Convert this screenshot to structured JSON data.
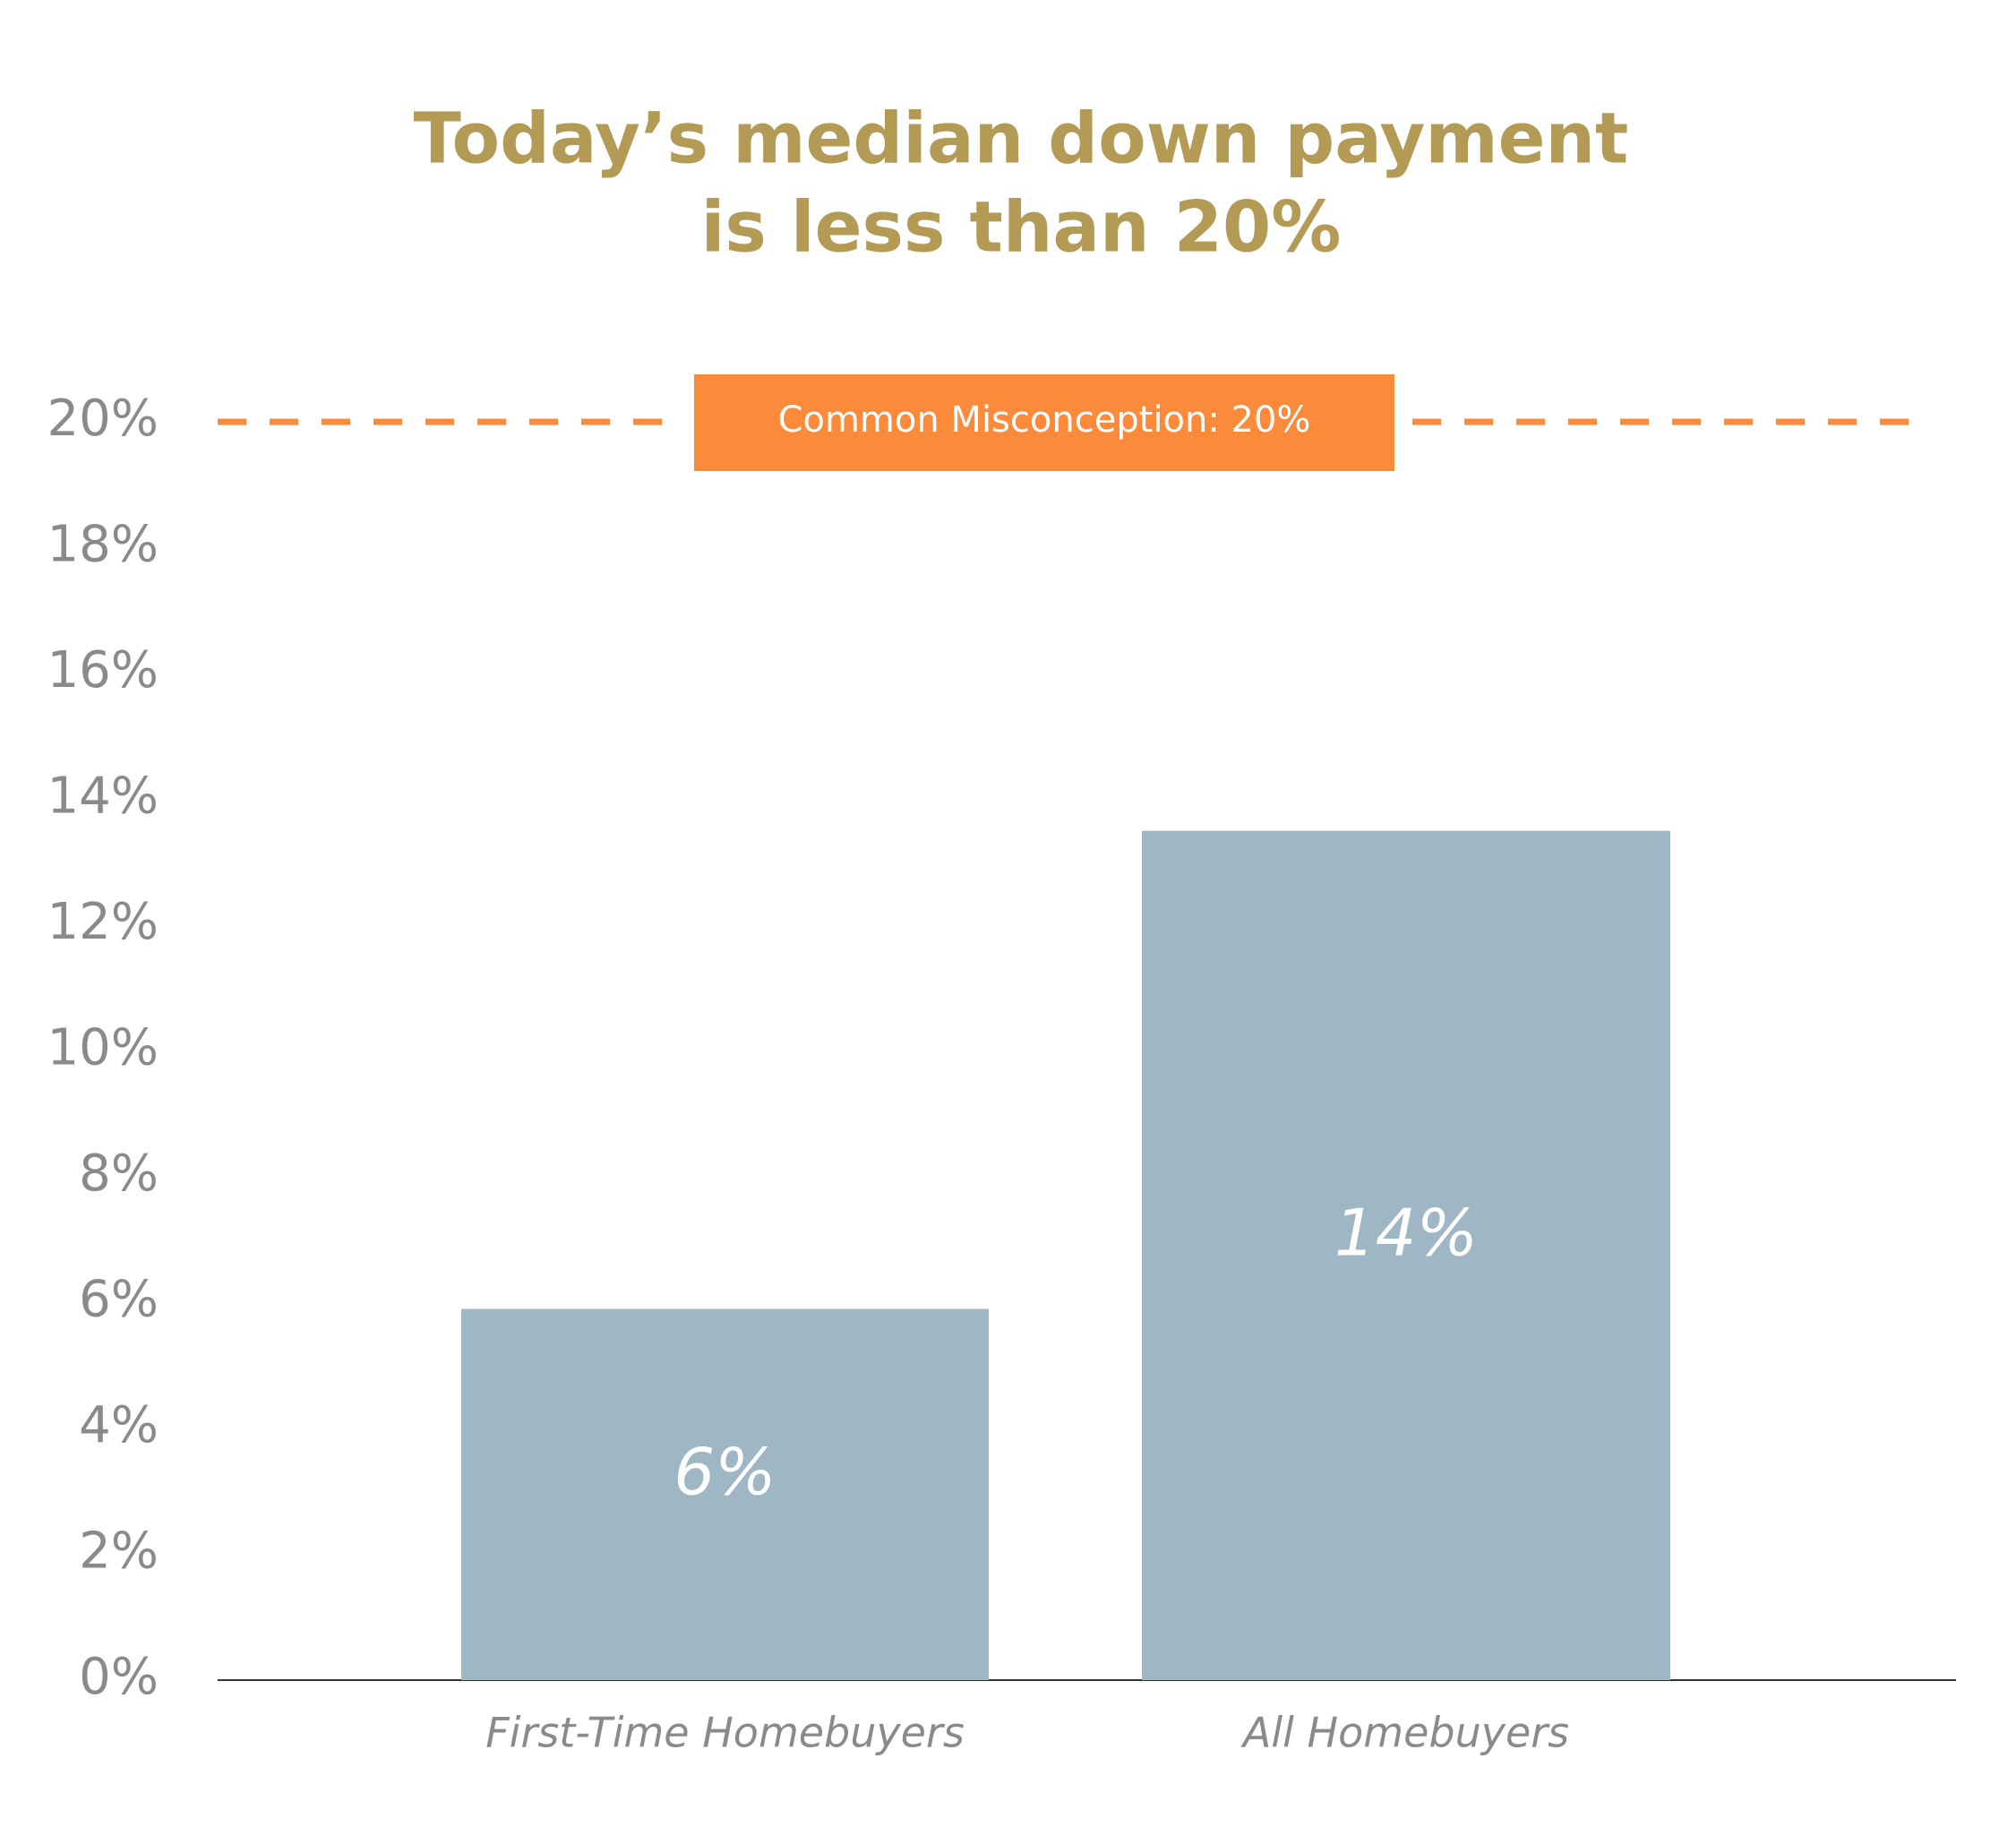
{
  "chart_data": {
    "type": "bar",
    "title": [
      "Today’s median down payment",
      "is less than 20%"
    ],
    "categories": [
      "First-Time Homebuyers",
      "All Homebuyers"
    ],
    "values": [
      5.9,
      13.5
    ],
    "value_labels": [
      "6%",
      "14%"
    ],
    "color": "#9fb6c4",
    "ylim": [
      0,
      20
    ],
    "yticks": [
      {
        "value": 0,
        "label": "0%"
      },
      {
        "value": 2,
        "label": "2%"
      },
      {
        "value": 4,
        "label": "4%"
      },
      {
        "value": 6,
        "label": "6%"
      },
      {
        "value": 8,
        "label": "8%"
      },
      {
        "value": 10,
        "label": "10%"
      },
      {
        "value": 12,
        "label": "12%"
      },
      {
        "value": 14,
        "label": "14%"
      },
      {
        "value": 16,
        "label": "16%"
      },
      {
        "value": 18,
        "label": "18%"
      },
      {
        "value": 20,
        "label": "20%"
      }
    ],
    "grid": false,
    "reference_line": {
      "value": 20,
      "label": "Common Misconception: 20%",
      "color": "#fb8a3a"
    }
  }
}
